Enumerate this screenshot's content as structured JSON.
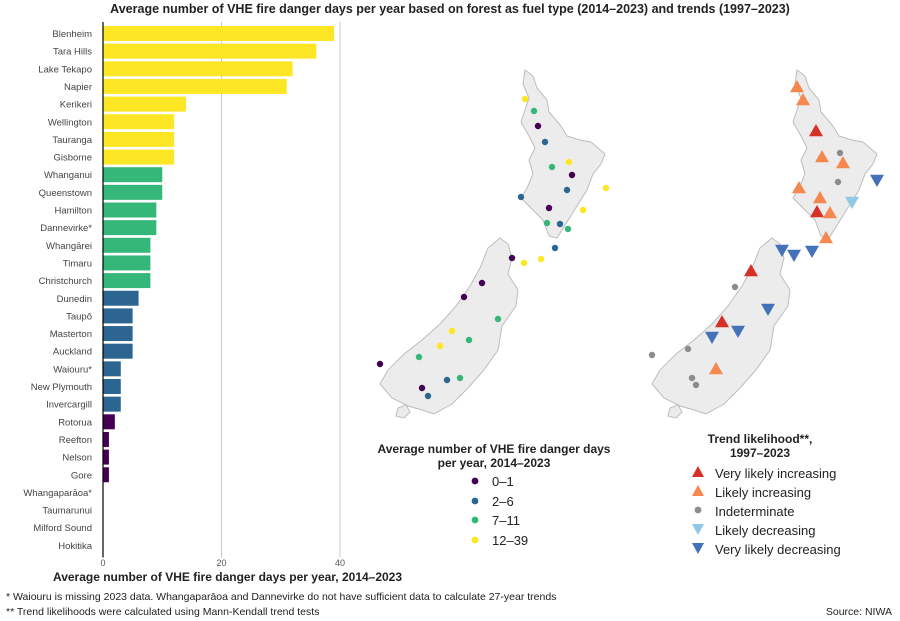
{
  "title": "Average number of VHE fire danger days per year based on forest as fuel type (2014–2023) and trends (1997–2023)",
  "colors": {
    "c0_1": "#440154",
    "c2_6": "#2c6590",
    "c7_11": "#35b779",
    "c12_39": "#fde725",
    "very_likely_inc": "#d73027",
    "likely_inc": "#f4884f",
    "indeterminate": "#8c8c8c",
    "likely_dec": "#91c8e4",
    "very_likely_dec": "#4472b8",
    "land": "#ececec",
    "coast": "#bdbdbd"
  },
  "chart_data": [
    {
      "type": "bar",
      "orientation": "horizontal",
      "categories": [
        "Blenheim",
        "Tara Hills",
        "Lake Tekapo",
        "Napier",
        "Kerikeri",
        "Wellington",
        "Tauranga",
        "Gisborne",
        "Whanganui",
        "Queenstown",
        "Hamilton",
        "Dannevirke*",
        "Whangārei",
        "Timaru",
        "Christchurch",
        "Dunedin",
        "Taupō",
        "Masterton",
        "Auckland",
        "Waiouru*",
        "New Plymouth",
        "Invercargill",
        "Rotorua",
        "Reefton",
        "Nelson",
        "Gore",
        "Whangaparāoa*",
        "Taumarunui",
        "Milford Sound",
        "Hokitika"
      ],
      "values": [
        39,
        36,
        32,
        31,
        14,
        12,
        12,
        12,
        10,
        10,
        9,
        9,
        8,
        8,
        8,
        6,
        5,
        5,
        5,
        3,
        3,
        3,
        2,
        1,
        1,
        1,
        0,
        0,
        0,
        0
      ],
      "classes": [
        "c12_39",
        "c12_39",
        "c12_39",
        "c12_39",
        "c12_39",
        "c12_39",
        "c12_39",
        "c12_39",
        "c7_11",
        "c7_11",
        "c7_11",
        "c7_11",
        "c7_11",
        "c7_11",
        "c7_11",
        "c2_6",
        "c2_6",
        "c2_6",
        "c2_6",
        "c2_6",
        "c2_6",
        "c2_6",
        "c0_1",
        "c0_1",
        "c0_1",
        "c0_1",
        "c0_1",
        "c0_1",
        "c0_1",
        "c0_1"
      ],
      "xlabel": "Average number of VHE fire danger days per year, 2014–2023",
      "xticks": [
        "0",
        "20",
        "40"
      ],
      "xlim": [
        0,
        40
      ]
    }
  ],
  "legend1": {
    "title": "Average number of VHE fire danger days per year, 2014–2023",
    "items": [
      {
        "label": "0–1",
        "color": "c0_1"
      },
      {
        "label": "2–6",
        "color": "c2_6"
      },
      {
        "label": "7–11",
        "color": "c7_11"
      },
      {
        "label": "12–39",
        "color": "c12_39"
      }
    ]
  },
  "legend2": {
    "title": "Trend likelihood**, 1997–2023",
    "items": [
      {
        "label": "Very likely increasing",
        "symbol": "up",
        "color": "very_likely_inc"
      },
      {
        "label": "Likely increasing",
        "symbol": "up",
        "color": "likely_inc"
      },
      {
        "label": "Indeterminate",
        "symbol": "dot",
        "color": "indeterminate"
      },
      {
        "label": "Likely decreasing",
        "symbol": "down",
        "color": "likely_dec"
      },
      {
        "label": "Very likely decreasing",
        "symbol": "down",
        "color": "very_likely_dec"
      }
    ]
  },
  "footnotes": {
    "f1": "* Waiouru is missing 2023 data. Whangaparāoa and Dannevirke do not have sufficient data to calculate 27-year trends",
    "f2": "** Trend likelihoods were calculated using Mann-Kendall trend tests",
    "source": "Source: NIWA"
  }
}
